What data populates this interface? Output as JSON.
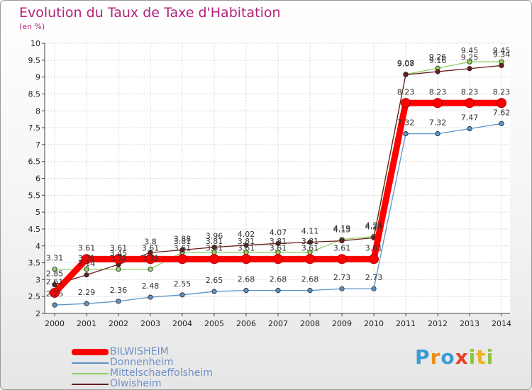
{
  "chart_data": {
    "type": "line",
    "title": "Evolution du Taux de Taxe d'Habitation",
    "subtitle": "(en %)",
    "x": [
      "2000",
      "2001",
      "2002",
      "2003",
      "2004",
      "2005",
      "2006",
      "2007",
      "2008",
      "2009",
      "2010",
      "2011",
      "2012",
      "2013",
      "2014"
    ],
    "ylim": [
      2,
      10
    ],
    "yticks": [
      "2",
      "2.5",
      "3",
      "3.5",
      "4",
      "4.5",
      "5",
      "5.5",
      "6",
      "6.5",
      "7",
      "7.5",
      "8",
      "8.5",
      "9",
      "9.5",
      "10"
    ],
    "grid": true,
    "legend_position": "bottom-left",
    "series": [
      {
        "name": "BILWISHEIM",
        "color": "#ff0000",
        "values": [
          2.61,
          3.61,
          3.61,
          3.61,
          3.61,
          3.61,
          3.61,
          3.61,
          3.61,
          3.61,
          3.61,
          8.23,
          8.23,
          8.23,
          8.23
        ],
        "labels": [
          "2.61",
          "3.61",
          "3.61",
          "3.61",
          "3.61",
          "3.61",
          "3.61",
          "3.61",
          "3.61",
          "3.61",
          "3.61",
          "8.23",
          "8.23",
          "8.23",
          "8.23"
        ]
      },
      {
        "name": "Donnenheim",
        "color": "#5b93c7",
        "values": [
          2.25,
          2.29,
          2.36,
          2.48,
          2.55,
          2.65,
          2.68,
          2.68,
          2.68,
          2.73,
          2.73,
          7.32,
          7.32,
          7.47,
          7.62
        ],
        "labels": [
          "2.25",
          "2.29",
          "2.36",
          "2.48",
          "2.55",
          "2.65",
          "2.68",
          "2.68",
          "2.68",
          "2.73",
          "2.73",
          "7.32",
          "7.32",
          "7.47",
          "7.62"
        ]
      },
      {
        "name": "Mittelschaeffolsheim",
        "color": "#90d060",
        "values": [
          3.31,
          3.31,
          3.31,
          3.31,
          3.81,
          3.81,
          3.81,
          3.81,
          3.81,
          4.19,
          4.28,
          9.08,
          9.26,
          9.45,
          9.45
        ],
        "labels": [
          "3.31",
          "3.31",
          "3.31",
          "3.31",
          "3.81",
          "3.81",
          "3.81",
          "3.81",
          "3.81",
          "4.19",
          "4.28",
          "9.08",
          "9.26",
          "9.45",
          "9.45"
        ]
      },
      {
        "name": "Olwisheim",
        "color": "#6b1e1e",
        "values": [
          2.85,
          3.14,
          3.45,
          3.8,
          3.88,
          3.96,
          4.02,
          4.07,
          4.11,
          4.15,
          4.24,
          9.07,
          9.16,
          9.25,
          9.34
        ],
        "labels": [
          "2.85",
          "3.14",
          "3.45",
          "3.8",
          "3.88",
          "3.96",
          "4.02",
          "4.07",
          "4.11",
          "4.15",
          "4.24",
          "9.07",
          "9.16",
          "9.25",
          "9.34"
        ]
      }
    ]
  },
  "brand": {
    "letters": [
      "P",
      "r",
      "o",
      "x",
      "i",
      "t",
      "i"
    ],
    "colors": [
      "#3b9ad6",
      "#f08a1c",
      "#3b9ad6",
      "#e93f2a",
      "#8cc63f",
      "#f0b21c",
      "#8cc63f"
    ]
  }
}
